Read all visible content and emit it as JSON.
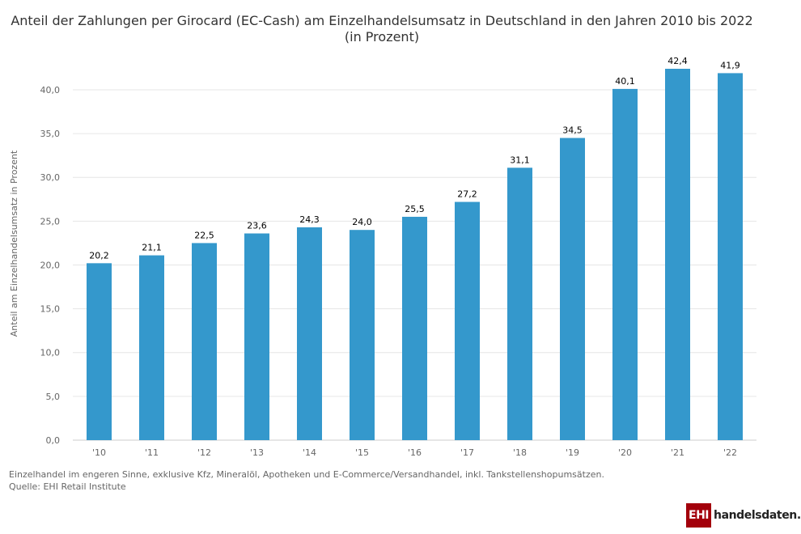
{
  "title_line1": "Anteil der Zahlungen per Girocard (EC-Cash) am Einzelhandelsumsatz in Deutschland in den Jahren 2010 bis 2022",
  "title_line2": "(in Prozent)",
  "footnote": "Einzelhandel im engeren Sinne, exklusive Kfz, Mineralöl, Apotheken und E-Commerce/Versandhandel, inkl. Tankstellenshopumsätzen.",
  "source": "Quelle: EHI Retail Institute",
  "logo": {
    "box": "EHI",
    "text": "handelsdaten.de"
  },
  "colors": {
    "bar": "#3498cc",
    "grid": "#e6e6e6",
    "axis_text": "#666666"
  },
  "chart_data": {
    "type": "bar",
    "categories": [
      "'10",
      "'11",
      "'12",
      "'13",
      "'14",
      "'15",
      "'16",
      "'17",
      "'18",
      "'19",
      "'20",
      "'21",
      "'22"
    ],
    "values": [
      20.2,
      21.1,
      22.5,
      23.6,
      24.3,
      24.0,
      25.5,
      27.2,
      31.1,
      34.5,
      40.1,
      42.4,
      41.9
    ],
    "value_labels": [
      "20,2",
      "21,1",
      "22,5",
      "23,6",
      "24,3",
      "24,0",
      "25,5",
      "27,2",
      "31,1",
      "34,5",
      "40,1",
      "42,4",
      "41,9"
    ],
    "ylabel": "Anteil am Einzelhandelsumsatz in Prozent",
    "xlabel": "",
    "ylim": [
      0,
      42.4
    ],
    "yticks": [
      0,
      5,
      10,
      15,
      20,
      25,
      30,
      35,
      40
    ],
    "ytick_labels": [
      "0,0",
      "5,0",
      "10,0",
      "15,0",
      "20,0",
      "25,0",
      "30,0",
      "35,0",
      "40,0"
    ],
    "grid": true,
    "legend": "none"
  }
}
